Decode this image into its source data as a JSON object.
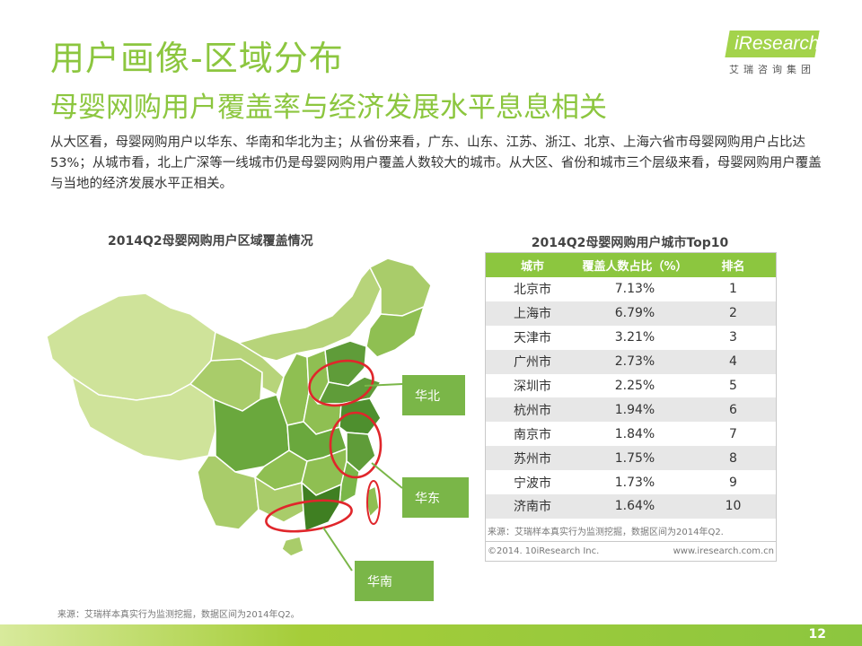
{
  "header": {
    "title": "用户画像-区域分布",
    "subtitle": "母婴网购用户覆盖率与经济发展水平息息相关",
    "logo_brand": "iResearch",
    "logo_cn": "艾瑞咨询集团"
  },
  "intro_text": "从大区看，母婴网购用户以华东、华南和华北为主；从省份来看，广东、山东、江苏、浙江、北京、上海六省市母婴网购用户占比达53%；从城市看，北上广深等一线城市仍是母婴网购用户覆盖人数较大的城市。从大区、省份和城市三个层级来看，母婴网购用户覆盖与当地的经济发展水平正相关。",
  "map": {
    "title": "2014Q2母婴网购用户区域覆盖情况",
    "region_labels": [
      "华北",
      "华东",
      "华南"
    ],
    "highlight_color": "#e0262b",
    "label_color": "#7ab648"
  },
  "chart_data": {
    "type": "table",
    "title": "2014Q2母婴网购用户城市Top10",
    "columns": [
      "城市",
      "覆盖人数占比（%）",
      "排名"
    ],
    "rows": [
      [
        "北京市",
        "7.13%",
        "1"
      ],
      [
        "上海市",
        "6.79%",
        "2"
      ],
      [
        "天津市",
        "3.21%",
        "3"
      ],
      [
        "广州市",
        "2.73%",
        "4"
      ],
      [
        "深圳市",
        "2.25%",
        "5"
      ],
      [
        "杭州市",
        "1.94%",
        "6"
      ],
      [
        "南京市",
        "1.84%",
        "7"
      ],
      [
        "苏州市",
        "1.75%",
        "8"
      ],
      [
        "宁波市",
        "1.73%",
        "9"
      ],
      [
        "济南市",
        "1.64%",
        "10"
      ]
    ]
  },
  "table_note": "来源：艾瑞样本真实行为监测挖掘，数据区间为2014年Q2.",
  "table_footer": {
    "copyright": "©2014. 10iResearch Inc.",
    "website": "www.iresearch.com.cn"
  },
  "footnote": "来源：艾瑞样本真实行为监测挖掘，数据区间为2014年Q2。",
  "page_number": "12",
  "colors": {
    "brand_green": "#8cc63f",
    "map_light": "#cfe39a",
    "map_dark": "#6aa83d"
  }
}
